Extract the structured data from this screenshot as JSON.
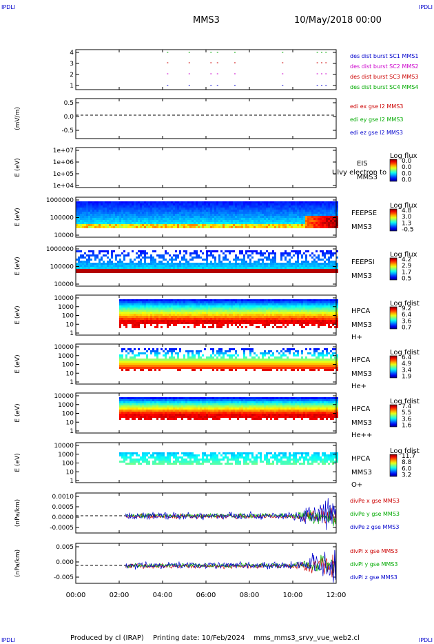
{
  "corner_label": "IPDLI",
  "header": {
    "mission": "MMS3",
    "date": "10/May/2018 00:00"
  },
  "footer": {
    "producer": "Produced by cl (IRAP)",
    "printing_date": "Printing date: 10/Feb/2024",
    "filename": "mms_mms3_srvy_vue_web2.cl"
  },
  "chart_data": {
    "type": "multi-panel time series / spectrogram",
    "x_ticks": [
      "00:00",
      "02:00",
      "04:00",
      "06:00",
      "08:00",
      "10:00",
      "12:00"
    ],
    "x_range_hours": [
      0,
      12
    ],
    "panels": [
      {
        "id": "burst",
        "type": "event",
        "yticks": [
          "4",
          "3",
          "2",
          "1"
        ],
        "legend": [
          {
            "text": "des dist burst SC1 MMS1",
            "color": "#0000cc"
          },
          {
            "text": "des dist burst SC2 MMS2",
            "color": "#cc00cc"
          },
          {
            "text": "des dist burst SC3 MMS3",
            "color": "#cc0000"
          },
          {
            "text": "des dist burst SC4 MMS4",
            "color": "#00aa00"
          }
        ]
      },
      {
        "id": "edi",
        "type": "line",
        "ylabel": "(mV/m)",
        "yticks": [
          "0.5",
          "0.0",
          "-0.5"
        ],
        "legend": [
          {
            "text": "edi ex gse l2 MMS3",
            "color": "#cc0000"
          },
          {
            "text": "edi ey gse l2 MMS3",
            "color": "#00aa00"
          },
          {
            "text": "edi ez gse l2 MMS3",
            "color": "#0000cc"
          }
        ]
      },
      {
        "id": "eis",
        "type": "spectrogram",
        "ylabel": "E (eV)",
        "yticks": [
          "1e+07",
          "1e+06",
          "1e+05",
          "1e+04"
        ],
        "labels": [
          "EIS",
          "MMS3"
        ],
        "overlay": "Ulvy electron to",
        "cb_title": "Log flux",
        "cb_ticks": [
          "0.0",
          "0.0",
          "0.0",
          "0.0"
        ]
      },
      {
        "id": "feepse",
        "type": "spectrogram",
        "ylabel": "E (eV)",
        "yticks": [
          "1000000",
          "100000",
          "10000"
        ],
        "labels": [
          "FEEPSE",
          "MMS3"
        ],
        "cb_title": "Log flux",
        "cb_ticks": [
          "4.8",
          "3.0",
          "1.3",
          "-0.5"
        ]
      },
      {
        "id": "feepsi",
        "type": "spectrogram",
        "ylabel": "E (eV)",
        "yticks": [
          "1000000",
          "100000",
          "10000"
        ],
        "labels": [
          "FEEPSI",
          "MMS3"
        ],
        "cb_title": "Log flux",
        "cb_ticks": [
          "4.2",
          "2.9",
          "1.7",
          "0.5"
        ]
      },
      {
        "id": "hpca_h",
        "type": "spectrogram",
        "ylabel": "E (eV)",
        "yticks": [
          "10000",
          "1000",
          "100",
          "10",
          "1"
        ],
        "labels": [
          "HPCA",
          "MMS3",
          "H+"
        ],
        "cb_title": "Log fdist",
        "cb_ticks": [
          "9.2",
          "6.4",
          "3.6",
          "0.7"
        ]
      },
      {
        "id": "hpca_he",
        "type": "spectrogram",
        "ylabel": "E (eV)",
        "yticks": [
          "10000",
          "1000",
          "100",
          "10",
          "1"
        ],
        "labels": [
          "HPCA",
          "MMS3",
          "He+"
        ],
        "cb_title": "Log fdist",
        "cb_ticks": [
          "6.4",
          "4.9",
          "3.4",
          "1.9"
        ]
      },
      {
        "id": "hpca_hepp",
        "type": "spectrogram",
        "ylabel": "E (eV)",
        "yticks": [
          "10000",
          "1000",
          "100",
          "10",
          "1"
        ],
        "labels": [
          "HPCA",
          "MMS3",
          "He++"
        ],
        "cb_title": "Log fdist",
        "cb_ticks": [
          "7.4",
          "5.5",
          "3.6",
          "1.6"
        ]
      },
      {
        "id": "hpca_o",
        "type": "spectrogram",
        "ylabel": "E (eV)",
        "yticks": [
          "10000",
          "1000",
          "100",
          "10",
          "1"
        ],
        "labels": [
          "HPCA",
          "MMS3",
          "O+"
        ],
        "cb_title": "Log fdist",
        "cb_ticks": [
          "11.7",
          "8.8",
          "6.0",
          "3.2"
        ]
      },
      {
        "id": "divpe",
        "type": "line",
        "ylabel": "(nPa/km)",
        "yticks": [
          "0.0010",
          "0.0005",
          "0.0000",
          "-0.0005"
        ],
        "legend": [
          {
            "text": "divPe x gse MMS3",
            "color": "#cc0000"
          },
          {
            "text": "divPe y gse MMS3",
            "color": "#00aa00"
          },
          {
            "text": "divPe z gse MMS3",
            "color": "#0000cc"
          }
        ]
      },
      {
        "id": "divpi",
        "type": "line",
        "ylabel": "(nPa/km)",
        "yticks": [
          "0.005",
          "0.000",
          "-0.005"
        ],
        "legend": [
          {
            "text": "divPi x gse MMS3",
            "color": "#cc0000"
          },
          {
            "text": "divPi y gse MMS3",
            "color": "#00aa00"
          },
          {
            "text": "divPi z gse MMS3",
            "color": "#0000cc"
          }
        ]
      }
    ]
  }
}
